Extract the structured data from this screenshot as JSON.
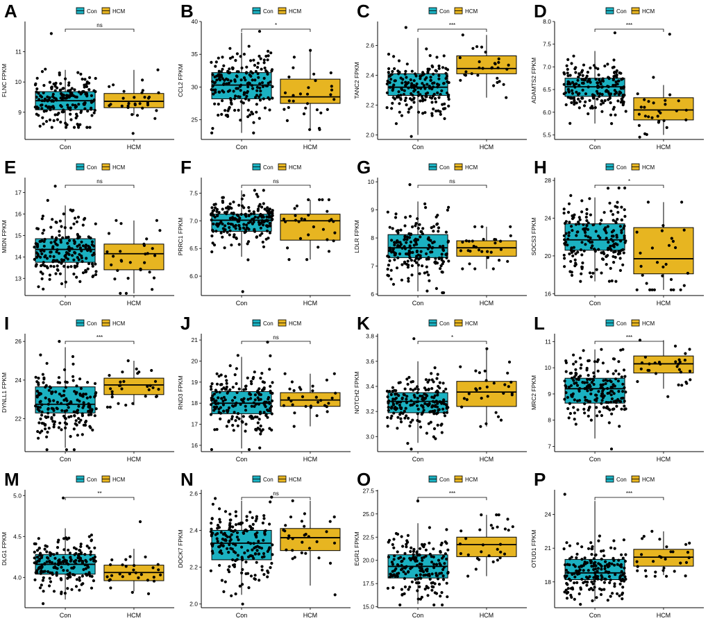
{
  "figure": {
    "groups": [
      "Con",
      "HCM"
    ],
    "colors": {
      "Con": "#1BB1C1",
      "HCM": "#E7B521",
      "point": "#000000",
      "axis": "#000000"
    }
  },
  "chart_data": [
    {
      "panel": "A",
      "type": "box",
      "ylabel": "FLNC FPKM",
      "ylim": [
        8.1,
        12.0
      ],
      "yticks": [
        9,
        10,
        11
      ],
      "significance": "ns",
      "series": [
        {
          "name": "Con",
          "q1": 9.08,
          "median": 9.38,
          "q3": 9.68,
          "whisker_low": 8.5,
          "whisker_high": 10.4,
          "min": 8.5,
          "max": 11.6,
          "n": 190
        },
        {
          "name": "HCM",
          "q1": 9.15,
          "median": 9.36,
          "q3": 9.62,
          "whisker_low": 8.9,
          "whisker_high": 10.4,
          "min": 8.3,
          "max": 10.4,
          "n": 30
        }
      ]
    },
    {
      "panel": "B",
      "type": "box",
      "ylabel": "CCL2 FPKM",
      "ylim": [
        22,
        40
      ],
      "yticks": [
        25,
        30,
        35,
        40
      ],
      "significance": "*",
      "series": [
        {
          "name": "Con",
          "q1": 28.2,
          "median": 30.3,
          "q3": 32.2,
          "whisker_low": 23.0,
          "whisker_high": 38.3,
          "min": 23.0,
          "max": 38.5,
          "n": 190
        },
        {
          "name": "HCM",
          "q1": 27.5,
          "median": 28.5,
          "q3": 31.2,
          "whisker_low": 23.5,
          "whisker_high": 35.6,
          "min": 23.5,
          "max": 35.6,
          "n": 30
        }
      ]
    },
    {
      "panel": "C",
      "type": "box",
      "ylabel": "TANC2 FPKM",
      "ylim": [
        1.97,
        2.76
      ],
      "yticks": [
        2.0,
        2.2,
        2.4,
        2.6
      ],
      "significance": "***",
      "series": [
        {
          "name": "Con",
          "q1": 2.265,
          "median": 2.32,
          "q3": 2.41,
          "whisker_low": 2.0,
          "whisker_high": 2.65,
          "min": 1.99,
          "max": 2.72,
          "n": 190
        },
        {
          "name": "HCM",
          "q1": 2.41,
          "median": 2.445,
          "q3": 2.53,
          "whisker_low": 2.25,
          "whisker_high": 2.67,
          "min": 2.25,
          "max": 2.67,
          "n": 30
        }
      ]
    },
    {
      "panel": "D",
      "type": "box",
      "ylabel": "ADAMTS2 FPKM",
      "ylim": [
        5.4,
        8.0
      ],
      "yticks": [
        5.5,
        6.0,
        6.5,
        7.0,
        7.5,
        8.0
      ],
      "significance": "***",
      "series": [
        {
          "name": "Con",
          "q1": 6.35,
          "median": 6.56,
          "q3": 6.75,
          "whisker_low": 5.75,
          "whisker_high": 7.35,
          "min": 5.75,
          "max": 7.75,
          "n": 190
        },
        {
          "name": "HCM",
          "q1": 5.83,
          "median": 6.05,
          "q3": 6.32,
          "whisker_low": 5.5,
          "whisker_high": 6.6,
          "min": 5.45,
          "max": 7.72,
          "n": 30
        }
      ]
    },
    {
      "panel": "E",
      "type": "box",
      "ylabel": "MIDN FPKM",
      "ylim": [
        12.2,
        17.7
      ],
      "yticks": [
        13,
        14,
        15,
        16,
        17
      ],
      "significance": "ns",
      "series": [
        {
          "name": "Con",
          "q1": 13.75,
          "median": 14.35,
          "q3": 14.85,
          "whisker_low": 12.55,
          "whisker_high": 16.4,
          "min": 12.5,
          "max": 17.3,
          "n": 190
        },
        {
          "name": "HCM",
          "q1": 13.4,
          "median": 14.15,
          "q3": 14.6,
          "whisker_low": 12.3,
          "whisker_high": 15.7,
          "min": 12.3,
          "max": 15.7,
          "n": 30
        }
      ]
    },
    {
      "panel": "F",
      "type": "box",
      "ylabel": "PRRC1 FPKM",
      "ylim": [
        5.65,
        7.78
      ],
      "yticks": [
        6.0,
        6.5,
        7.0,
        7.5
      ],
      "significance": "ns",
      "series": [
        {
          "name": "Con",
          "q1": 6.81,
          "median": 7.01,
          "q3": 7.12,
          "whisker_low": 6.35,
          "whisker_high": 7.55,
          "min": 5.72,
          "max": 7.55,
          "n": 190
        },
        {
          "name": "HCM",
          "q1": 6.65,
          "median": 7.0,
          "q3": 7.12,
          "whisker_low": 6.3,
          "whisker_high": 7.38,
          "min": 6.3,
          "max": 7.38,
          "n": 30
        }
      ]
    },
    {
      "panel": "G",
      "type": "box",
      "ylabel": "LDLR FPKM",
      "ylim": [
        5.95,
        10.15
      ],
      "yticks": [
        6,
        7,
        8,
        9,
        10
      ],
      "significance": "ns",
      "series": [
        {
          "name": "Con",
          "q1": 7.3,
          "median": 7.65,
          "q3": 8.12,
          "whisker_low": 6.1,
          "whisker_high": 9.3,
          "min": 6.05,
          "max": 9.9,
          "n": 190
        },
        {
          "name": "HCM",
          "q1": 7.35,
          "median": 7.65,
          "q3": 7.9,
          "whisker_low": 6.9,
          "whisker_high": 8.4,
          "min": 6.9,
          "max": 8.4,
          "n": 30
        }
      ]
    },
    {
      "panel": "H",
      "type": "box",
      "ylabel": "SOCS3 FPKM",
      "ylim": [
        15.8,
        28.3
      ],
      "yticks": [
        16,
        20,
        24,
        28
      ],
      "significance": "*",
      "series": [
        {
          "name": "Con",
          "q1": 20.6,
          "median": 21.7,
          "q3": 23.4,
          "whisker_low": 17.3,
          "whisker_high": 26.2,
          "min": 17.3,
          "max": 27.2,
          "n": 190
        },
        {
          "name": "HCM",
          "q1": 18.1,
          "median": 19.7,
          "q3": 23.0,
          "whisker_low": 16.4,
          "whisker_high": 25.7,
          "min": 16.4,
          "max": 25.7,
          "n": 30
        }
      ]
    },
    {
      "panel": "I",
      "type": "box",
      "ylabel": "DYNLL1 FPKM",
      "ylim": [
        20.3,
        26.4
      ],
      "yticks": [
        22,
        24,
        26
      ],
      "significance": "***",
      "series": [
        {
          "name": "Con",
          "q1": 22.3,
          "median": 22.75,
          "q3": 23.65,
          "whisker_low": 20.5,
          "whisker_high": 25.7,
          "min": 20.4,
          "max": 26.0,
          "n": 190
        },
        {
          "name": "HCM",
          "q1": 23.25,
          "median": 23.75,
          "q3": 24.1,
          "whisker_low": 22.7,
          "whisker_high": 25.0,
          "min": 22.6,
          "max": 25.0,
          "n": 30
        }
      ]
    },
    {
      "panel": "J",
      "type": "box",
      "ylabel": "RND3 FPKM",
      "ylim": [
        15.7,
        21.3
      ],
      "yticks": [
        16,
        17,
        18,
        19,
        20,
        21
      ],
      "significance": "ns",
      "series": [
        {
          "name": "Con",
          "q1": 17.5,
          "median": 18.0,
          "q3": 18.55,
          "whisker_low": 15.85,
          "whisker_high": 20.2,
          "min": 15.8,
          "max": 20.9,
          "n": 190
        },
        {
          "name": "HCM",
          "q1": 17.85,
          "median": 18.15,
          "q3": 18.5,
          "whisker_low": 16.9,
          "whisker_high": 19.4,
          "min": 16.9,
          "max": 19.4,
          "n": 30
        }
      ]
    },
    {
      "panel": "K",
      "type": "box",
      "ylabel": "NOTCH2 FPKM",
      "ylim": [
        2.88,
        3.82
      ],
      "yticks": [
        3.0,
        3.2,
        3.4,
        3.6,
        3.8
      ],
      "significance": "*",
      "series": [
        {
          "name": "Con",
          "q1": 3.19,
          "median": 3.28,
          "q3": 3.35,
          "whisker_low": 2.95,
          "whisker_high": 3.6,
          "min": 2.9,
          "max": 3.78,
          "n": 190
        },
        {
          "name": "HCM",
          "q1": 3.24,
          "median": 3.355,
          "q3": 3.44,
          "whisker_low": 3.08,
          "whisker_high": 3.7,
          "min": 3.08,
          "max": 3.7,
          "n": 30
        }
      ]
    },
    {
      "panel": "L",
      "type": "box",
      "ylabel": "MRC2 FPKM",
      "ylim": [
        6.8,
        11.3
      ],
      "yticks": [
        7,
        8,
        9,
        10,
        11
      ],
      "significance": "***",
      "series": [
        {
          "name": "Con",
          "q1": 8.65,
          "median": 9.2,
          "q3": 9.6,
          "whisker_low": 7.3,
          "whisker_high": 10.7,
          "min": 6.9,
          "max": 10.7,
          "n": 190
        },
        {
          "name": "HCM",
          "q1": 9.8,
          "median": 10.15,
          "q3": 10.45,
          "whisker_low": 9.2,
          "whisker_high": 11.05,
          "min": 8.9,
          "max": 11.05,
          "n": 30
        }
      ]
    },
    {
      "panel": "M",
      "type": "box",
      "ylabel": "DLG1 FPKM",
      "ylim": [
        3.63,
        5.07
      ],
      "yticks": [
        4.0,
        4.5,
        5.0
      ],
      "significance": "**",
      "series": [
        {
          "name": "Con",
          "q1": 4.04,
          "median": 4.16,
          "q3": 4.28,
          "whisker_low": 3.73,
          "whisker_high": 4.6,
          "min": 3.68,
          "max": 4.97,
          "n": 190
        },
        {
          "name": "HCM",
          "q1": 3.96,
          "median": 4.06,
          "q3": 4.15,
          "whisker_low": 3.83,
          "whisker_high": 4.35,
          "min": 3.8,
          "max": 4.68,
          "n": 30
        }
      ]
    },
    {
      "panel": "N",
      "type": "box",
      "ylabel": "DOCK7 FPKM",
      "ylim": [
        1.98,
        2.62
      ],
      "yticks": [
        2.0,
        2.2,
        2.4,
        2.6
      ],
      "significance": "ns",
      "series": [
        {
          "name": "Con",
          "q1": 2.24,
          "median": 2.33,
          "q3": 2.4,
          "whisker_low": 2.05,
          "whisker_high": 2.56,
          "min": 2.0,
          "max": 2.58,
          "n": 190
        },
        {
          "name": "HCM",
          "q1": 2.29,
          "median": 2.36,
          "q3": 2.41,
          "whisker_low": 2.1,
          "whisker_high": 2.56,
          "min": 2.05,
          "max": 2.56,
          "n": 30
        }
      ]
    },
    {
      "panel": "O",
      "type": "box",
      "ylabel": "EGR1 FPKM",
      "ylim": [
        14.9,
        27.6
      ],
      "yticks": [
        15.0,
        17.5,
        20.0,
        22.5,
        25.0,
        27.5
      ],
      "significance": "***",
      "series": [
        {
          "name": "Con",
          "q1": 18.1,
          "median": 19.35,
          "q3": 20.6,
          "whisker_low": 15.3,
          "whisker_high": 24.0,
          "min": 15.2,
          "max": 26.4,
          "n": 190
        },
        {
          "name": "HCM",
          "q1": 20.4,
          "median": 21.7,
          "q3": 22.5,
          "whisker_low": 18.3,
          "whisker_high": 24.9,
          "min": 18.3,
          "max": 24.9,
          "n": 30
        }
      ]
    },
    {
      "panel": "P",
      "type": "box",
      "ylabel": "OTUD1 FPKM",
      "ylim": [
        15.7,
        26.2
      ],
      "yticks": [
        18,
        21,
        24
      ],
      "significance": "***",
      "series": [
        {
          "name": "Con",
          "q1": 18.2,
          "median": 18.8,
          "q3": 20.0,
          "whisker_low": 16.3,
          "whisker_high": 25.2,
          "min": 16.0,
          "max": 25.8,
          "n": 190
        },
        {
          "name": "HCM",
          "q1": 19.4,
          "median": 20.2,
          "q3": 20.9,
          "whisker_low": 18.6,
          "whisker_high": 22.5,
          "min": 18.5,
          "max": 22.5,
          "n": 30
        }
      ]
    }
  ]
}
